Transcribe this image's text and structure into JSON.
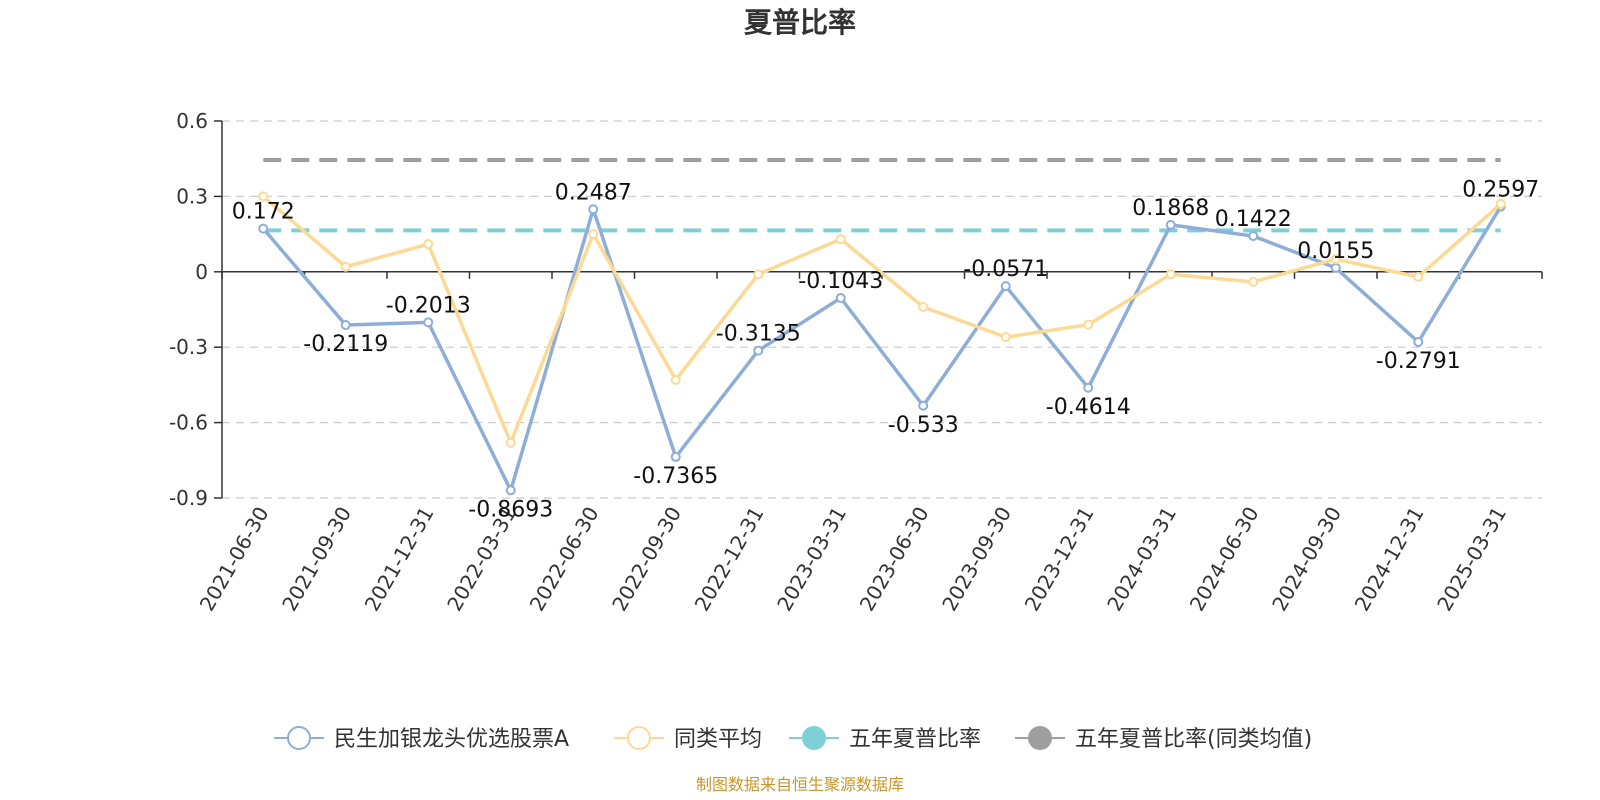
{
  "chart_data": {
    "type": "line",
    "title": "夏普比率",
    "x": [
      "2021-06-30",
      "2021-09-30",
      "2021-12-31",
      "2022-03-31",
      "2022-06-30",
      "2022-09-30",
      "2022-12-31",
      "2023-03-31",
      "2023-06-30",
      "2023-09-30",
      "2023-12-31",
      "2024-03-31",
      "2024-06-30",
      "2024-09-30",
      "2024-12-31",
      "2025-03-31"
    ],
    "ylim": [
      -0.9,
      0.6
    ],
    "yticks": [
      "0.6",
      "0.3",
      "0",
      "-0.3",
      "-0.6",
      "-0.9"
    ],
    "grid": true,
    "legend_position": "bottom",
    "series": [
      {
        "name": "民生加银龙头优选股票A",
        "color": "#8eaed8",
        "values": [
          0.172,
          -0.2119,
          -0.2013,
          -0.8693,
          0.2487,
          -0.7365,
          -0.3135,
          -0.1043,
          -0.533,
          -0.0571,
          -0.4614,
          0.1868,
          0.1422,
          0.0155,
          -0.2791,
          0.2597
        ],
        "labels": [
          "0.172",
          "-0.2119",
          "-0.2013",
          "-0.8693",
          "0.2487",
          "-0.7365",
          "-0.3135",
          "-0.1043",
          "-0.533",
          "-0.0571",
          "-0.4614",
          "0.1868",
          "0.1422",
          "0.0155",
          "-0.2791",
          "0.2597"
        ]
      },
      {
        "name": "同类平均",
        "color": "#fcd994",
        "values": [
          0.3,
          0.02,
          0.11,
          -0.68,
          0.15,
          -0.43,
          -0.01,
          0.13,
          -0.14,
          -0.26,
          -0.21,
          -0.01,
          -0.04,
          0.05,
          -0.02,
          0.27
        ]
      },
      {
        "name": "五年夏普比率",
        "color": "#7fd0d6",
        "constant": 0.165
      },
      {
        "name": "五年夏普比率(同类均值)",
        "color": "#9e9e9e",
        "constant": 0.445
      }
    ]
  },
  "source_note": "制图数据来自恒生聚源数据库"
}
